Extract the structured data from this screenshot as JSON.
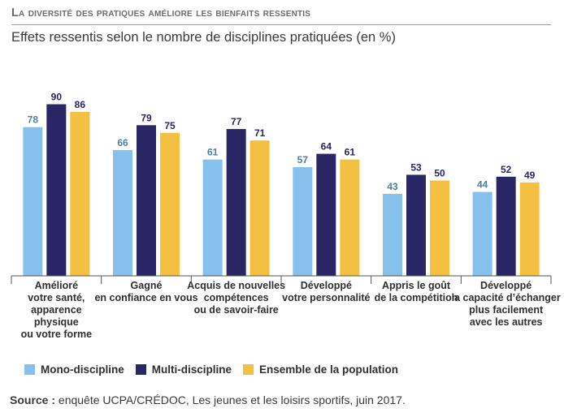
{
  "header": {
    "title": "La diversité des pratiques améliore les bienfaits ressentis",
    "subtitle": "Effets ressentis selon le nombre de disciplines pratiquées (en %)"
  },
  "colors": {
    "mono": "#85c1ea",
    "multi": "#2a2565",
    "ensemble": "#f4c042",
    "label_mono": "#4d7fa6",
    "label_dark": "#2a2565"
  },
  "chart_data": {
    "type": "bar",
    "categories": [
      [
        "Amélioré",
        "votre santé,",
        "apparence",
        "physique",
        "ou votre forme"
      ],
      [
        "Gagné",
        "en confiance en vous"
      ],
      [
        "Acquis de nouvelles",
        "compétences",
        "ou de savoir-faire"
      ],
      [
        "Développé",
        "votre personnalité"
      ],
      [
        "Appris le goût",
        "de la compétition"
      ],
      [
        "Développé",
        "la capacité d’échanger",
        "plus facilement",
        "avec les autres"
      ]
    ],
    "series": [
      {
        "name": "Mono-discipline",
        "values": [
          78,
          66,
          61,
          57,
          43,
          44
        ]
      },
      {
        "name": "Multi-discipline",
        "values": [
          90,
          79,
          77,
          64,
          53,
          52
        ]
      },
      {
        "name": "Ensemble de la population",
        "values": [
          86,
          75,
          71,
          61,
          50,
          49
        ]
      }
    ],
    "ylim": [
      0,
      100
    ],
    "grid": false,
    "data_labels": true,
    "legend_position": "bottom-left"
  },
  "legend": {
    "mono": "Mono-discipline",
    "multi": "Multi-discipline",
    "ensemble": "Ensemble de la population"
  },
  "source": {
    "label": "Source :",
    "text": " enquête UCPA/CRÉDOC, Les jeunes et les loisirs sportifs, juin 2017."
  }
}
